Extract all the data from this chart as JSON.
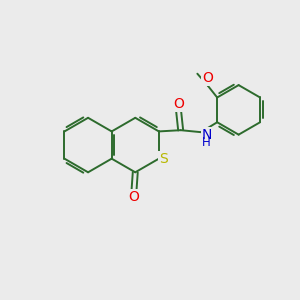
{
  "bg": "#ebebeb",
  "bc": "#2d6b2d",
  "bw": 1.4,
  "S_color": "#b8b800",
  "O_color": "#ee0000",
  "N_color": "#0000cc",
  "fs": 10,
  "fs_small": 9,
  "xlim": [
    -1,
    11
  ],
  "ylim": [
    -1,
    11
  ],
  "ring_r": 1.1
}
